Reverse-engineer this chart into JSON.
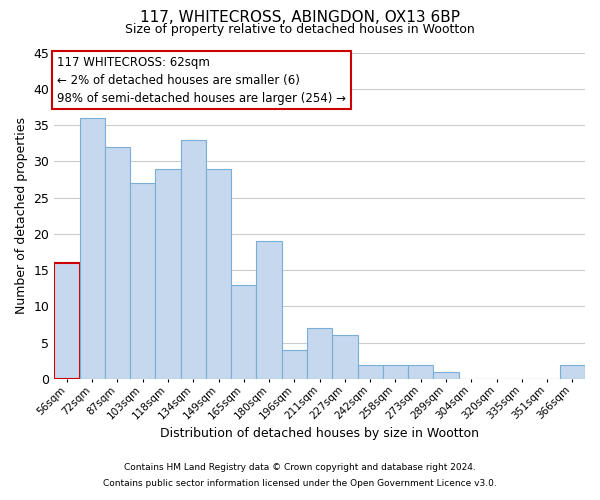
{
  "title": "117, WHITECROSS, ABINGDON, OX13 6BP",
  "subtitle": "Size of property relative to detached houses in Wootton",
  "xlabel": "Distribution of detached houses by size in Wootton",
  "ylabel": "Number of detached properties",
  "bin_labels": [
    "56sqm",
    "72sqm",
    "87sqm",
    "103sqm",
    "118sqm",
    "134sqm",
    "149sqm",
    "165sqm",
    "180sqm",
    "196sqm",
    "211sqm",
    "227sqm",
    "242sqm",
    "258sqm",
    "273sqm",
    "289sqm",
    "304sqm",
    "320sqm",
    "335sqm",
    "351sqm",
    "366sqm"
  ],
  "bar_values": [
    16,
    36,
    32,
    27,
    29,
    33,
    29,
    13,
    19,
    4,
    7,
    6,
    2,
    2,
    2,
    1,
    0,
    0,
    0,
    0,
    2
  ],
  "bar_color": "#c5d8ed",
  "bar_edgecolor": "#7aaed6",
  "highlight_bar_index": 0,
  "highlight_edgecolor": "#cc0000",
  "ylim": [
    0,
    45
  ],
  "yticks": [
    0,
    5,
    10,
    15,
    20,
    25,
    30,
    35,
    40,
    45
  ],
  "annotation_title": "117 WHITECROSS: 62sqm",
  "annotation_line1": "← 2% of detached houses are smaller (6)",
  "annotation_line2": "98% of semi-detached houses are larger (254) →",
  "annotation_box_facecolor": "#ffffff",
  "annotation_box_edgecolor": "#cc0000",
  "footer_line1": "Contains HM Land Registry data © Crown copyright and database right 2024.",
  "footer_line2": "Contains public sector information licensed under the Open Government Licence v3.0.",
  "background_color": "#ffffff",
  "grid_color": "#cccccc"
}
